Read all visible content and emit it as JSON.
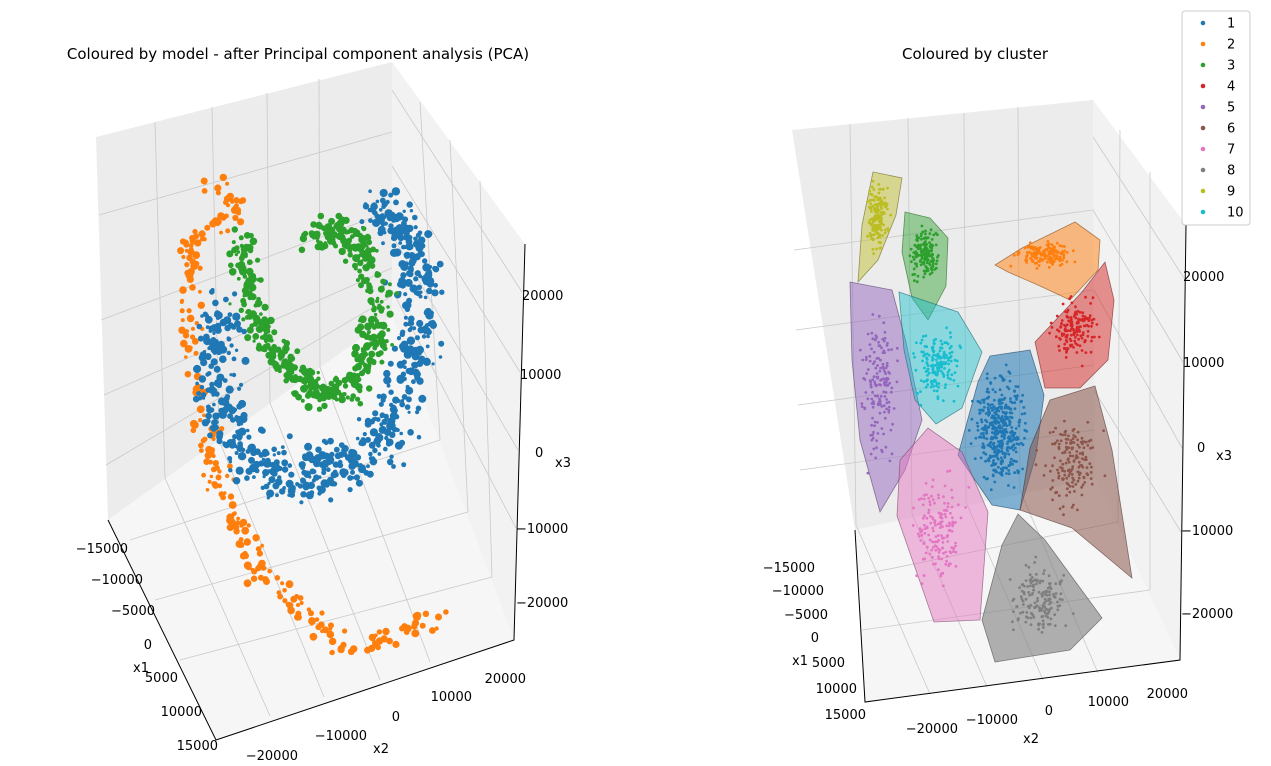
{
  "chart_data": [
    {
      "type": "scatter",
      "subtype": "3d",
      "title": "Coloured by model - after Principal component analysis (PCA)",
      "xlabel": "x1",
      "ylabel": "x2",
      "zlabel": "x3",
      "x_ticks": [
        "−15000",
        "−10000",
        "−5000",
        "0",
        "5000",
        "10000",
        "15000"
      ],
      "y_ticks": [
        "−20000",
        "−10000",
        "0",
        "10000",
        "20000"
      ],
      "z_ticks": [
        "−20000",
        "−10000",
        "0",
        "10000",
        "20000"
      ],
      "grid": true,
      "series": [
        {
          "color": "#1f77b4",
          "shape": "spiral inner band, upper-right to lower-center"
        },
        {
          "color": "#ff7f0e",
          "shape": "spiral outer arm, left side down to bottom"
        },
        {
          "color": "#2ca02c",
          "shape": "spiral top arc"
        }
      ]
    },
    {
      "type": "scatter",
      "subtype": "3d-convex-hulls",
      "title": "Coloured by cluster",
      "xlabel": "x1",
      "ylabel": "x2",
      "zlabel": "x3",
      "x_ticks": [
        "−15000",
        "−10000",
        "−5000",
        "0",
        "5000",
        "10000",
        "15000"
      ],
      "y_ticks": [
        "−20000",
        "−10000",
        "0",
        "10000",
        "20000"
      ],
      "z_ticks": [
        "−20000",
        "−10000",
        "0",
        "10000",
        "20000"
      ],
      "grid": true,
      "legend_position": "top-right",
      "series": [
        {
          "name": "1",
          "color": "#1f77b4"
        },
        {
          "name": "2",
          "color": "#ff7f0e"
        },
        {
          "name": "3",
          "color": "#2ca02c"
        },
        {
          "name": "4",
          "color": "#d62728"
        },
        {
          "name": "5",
          "color": "#9467bd"
        },
        {
          "name": "6",
          "color": "#8c564b"
        },
        {
          "name": "7",
          "color": "#e377c2"
        },
        {
          "name": "8",
          "color": "#7f7f7f"
        },
        {
          "name": "9",
          "color": "#bcbd22"
        },
        {
          "name": "10",
          "color": "#17becf"
        }
      ]
    }
  ]
}
